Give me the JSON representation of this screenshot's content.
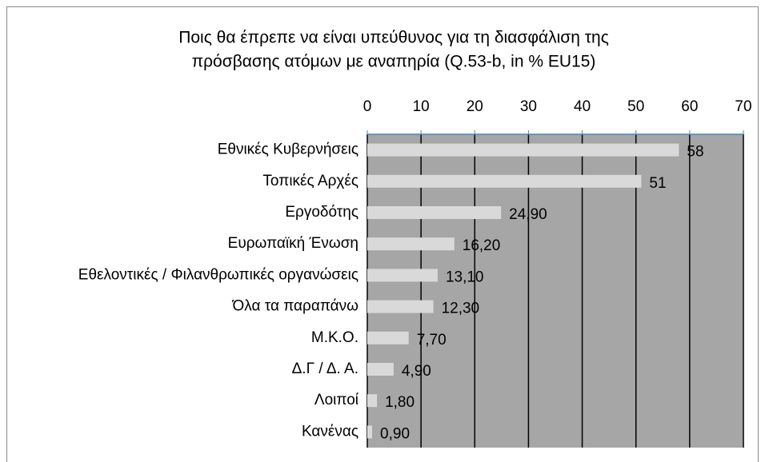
{
  "chart_data": {
    "type": "bar",
    "orientation": "horizontal",
    "title": [
      "Ποις θα έπρεπε να είναι υπεύθυνος για τη διασφάλιση της",
      "πρόσβασης ατόμων με αναπηρία (Q.53-b, in % EU15)"
    ],
    "categories": [
      "Εθνικές Κυβερνήσεις",
      "Τοπικές Αρχές",
      "Εργοδότης",
      "Ευρωπαϊκή Ένωση",
      "Εθελοντικές / Φιλανθρωπικές οργανώσεις",
      "Όλα τα παραπάνω",
      "Μ.Κ.Ο.",
      "Δ.Γ / Δ. Α.",
      "Λοιποί",
      "Κανένας"
    ],
    "values": [
      58,
      51,
      24.9,
      16.2,
      13.1,
      12.3,
      7.7,
      4.9,
      1.8,
      0.9
    ],
    "value_labels": [
      "58",
      "51",
      "24,90",
      "16,20",
      "13,10",
      "12,30",
      "7,70",
      "4,90",
      "1,80",
      "0,90"
    ],
    "color": "#d9d9d9",
    "plot_background": "#a6a6a6",
    "xlim": [
      0,
      70
    ],
    "xticks": [
      0,
      10,
      20,
      30,
      40,
      50,
      60,
      70
    ],
    "grid": true
  }
}
